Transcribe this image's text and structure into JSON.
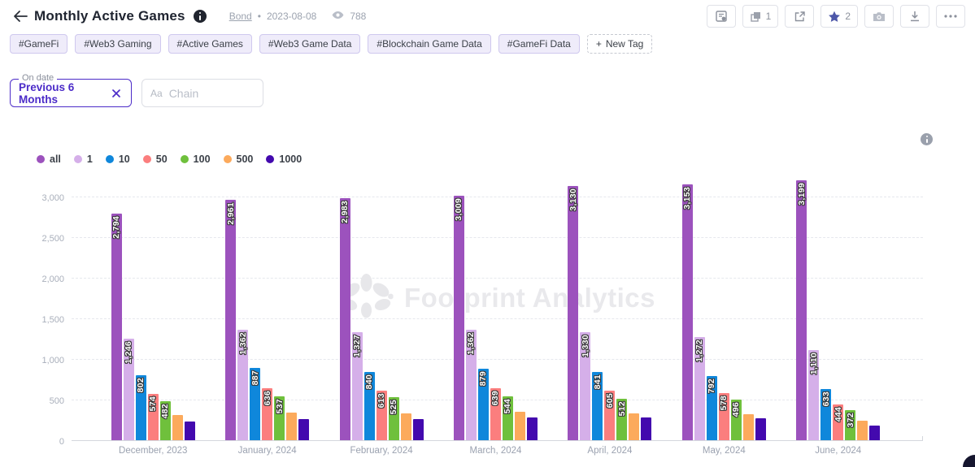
{
  "header": {
    "title": "Monthly Active Games",
    "author_link": "Bond",
    "separator": "•",
    "date": "2023-08-08",
    "views": "788",
    "toolbar": {
      "copies": "1",
      "stars": "2"
    }
  },
  "tags": {
    "items": [
      "#GameFi",
      "#Web3 Gaming",
      "#Active Games",
      "#Web3 Game Data",
      "#Blockchain Game Data",
      "#GameFi Data"
    ],
    "new_tag_plus": "+",
    "new_tag_label": "New Tag"
  },
  "filters": {
    "date_label": "On date",
    "date_value": "Previous 6 Months",
    "chain_prefix": "Aa",
    "chain_placeholder": "Chain"
  },
  "watermark": "Footprint Analytics",
  "chart_data": {
    "type": "bar",
    "title": "Monthly Active Games",
    "categories": [
      "December, 2023",
      "January, 2024",
      "February, 2024",
      "March, 2024",
      "April, 2024",
      "May, 2024",
      "June, 2024"
    ],
    "series": [
      {
        "name": "all",
        "color": "#9c52bd",
        "labels_visible": true,
        "values": [
          2794,
          2961,
          2983,
          3009,
          3130,
          3153,
          3199
        ]
      },
      {
        "name": "1",
        "color": "#d5afe9",
        "labels_visible": true,
        "values": [
          1246,
          1362,
          1327,
          1362,
          1330,
          1272,
          1110
        ]
      },
      {
        "name": "10",
        "color": "#0f87db",
        "labels_visible": true,
        "values": [
          802,
          887,
          840,
          879,
          841,
          792,
          633
        ]
      },
      {
        "name": "50",
        "color": "#fb7e7e",
        "labels_visible": true,
        "values": [
          574,
          636,
          613,
          639,
          605,
          578,
          444
        ]
      },
      {
        "name": "100",
        "color": "#6fc03c",
        "labels_visible": true,
        "values": [
          482,
          537,
          525,
          544,
          512,
          496,
          372
        ]
      },
      {
        "name": "500",
        "color": "#fcaa5c",
        "labels_visible": false,
        "values": [
          310,
          340,
          330,
          345,
          330,
          320,
          240
        ],
        "note": "values estimated from bar heights; labels not rendered in chart"
      },
      {
        "name": "1000",
        "color": "#4309ae",
        "labels_visible": false,
        "values": [
          230,
          260,
          255,
          275,
          275,
          265,
          180
        ],
        "note": "values estimated from bar heights; labels not rendered in chart"
      }
    ],
    "ylim": [
      0,
      3000
    ],
    "yticks": [
      "0",
      "500",
      "1,000",
      "1,500",
      "2,000",
      "2,500",
      "3,000"
    ],
    "xlabel": "",
    "ylabel": "",
    "grid": "horizontal-dashed",
    "legend_position": "top-left",
    "bar_label_style": "white, vertical (bottom-to-top), dark outline, at bar top"
  }
}
